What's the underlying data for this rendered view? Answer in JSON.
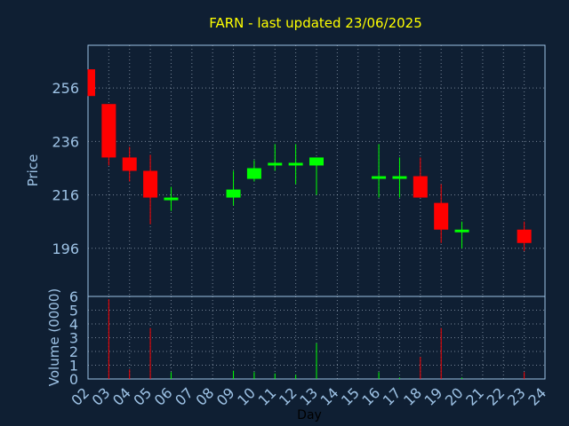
{
  "chart_data": {
    "type": "candlestick",
    "title": "FARN - last updated 23/06/2025",
    "price_panel": {
      "ylabel": "Price",
      "yticks": [
        196,
        216,
        236,
        256
      ],
      "ylim": [
        178,
        272
      ]
    },
    "volume_panel": {
      "ylabel": "Volume (0000)",
      "yticks": [
        0,
        1,
        2,
        3,
        4,
        5,
        6
      ],
      "ylim": [
        0,
        6
      ]
    },
    "xlabel": "Day",
    "x_ticks": [
      "02",
      "03",
      "04",
      "05",
      "06",
      "07",
      "08",
      "09",
      "10",
      "11",
      "12",
      "13",
      "14",
      "15",
      "16",
      "17",
      "18",
      "19",
      "20",
      "21",
      "22",
      "23",
      "24"
    ],
    "grid": true,
    "colors": {
      "up": "#00ff00",
      "down": "#ff0000",
      "title": "#ffff00",
      "axis": "#9ec3e6",
      "background": "#0f1f33"
    },
    "candles": [
      {
        "day": "02",
        "open": 263,
        "high": 263,
        "low": 253,
        "close": 253,
        "volume": 0.0
      },
      {
        "day": "03",
        "open": 250,
        "high": 250,
        "low": 227,
        "close": 230,
        "volume": 5.8
      },
      {
        "day": "04",
        "open": 230,
        "high": 234,
        "low": 221,
        "close": 225,
        "volume": 0.7
      },
      {
        "day": "05",
        "open": 225,
        "high": 231,
        "low": 205,
        "close": 215,
        "volume": 3.7
      },
      {
        "day": "06",
        "open": 214,
        "high": 219,
        "low": 210,
        "close": 215,
        "volume": 0.5
      },
      {
        "day": "09",
        "open": 215,
        "high": 225,
        "low": 212,
        "close": 218,
        "volume": 0.6
      },
      {
        "day": "10",
        "open": 222,
        "high": 229,
        "low": 221,
        "close": 226,
        "volume": 0.5
      },
      {
        "day": "11",
        "open": 227,
        "high": 235,
        "low": 225,
        "close": 228,
        "volume": 0.4
      },
      {
        "day": "12",
        "open": 227,
        "high": 235,
        "low": 220,
        "close": 228,
        "volume": 0.3
      },
      {
        "day": "13",
        "open": 227,
        "high": 230,
        "low": 216,
        "close": 230,
        "volume": 2.6
      },
      {
        "day": "16",
        "open": 222,
        "high": 235,
        "low": 215,
        "close": 223,
        "volume": 0.5
      },
      {
        "day": "17",
        "open": 222,
        "high": 230,
        "low": 215,
        "close": 223,
        "volume": 0.1
      },
      {
        "day": "18",
        "open": 223,
        "high": 230,
        "low": 215,
        "close": 215,
        "volume": 1.6
      },
      {
        "day": "19",
        "open": 213,
        "high": 220,
        "low": 198,
        "close": 203,
        "volume": 3.7
      },
      {
        "day": "20",
        "open": 202,
        "high": 206,
        "low": 196,
        "close": 203,
        "volume": 0.1
      },
      {
        "day": "23",
        "open": 203,
        "high": 206,
        "low": 195,
        "close": 198,
        "volume": 0.5
      }
    ]
  }
}
